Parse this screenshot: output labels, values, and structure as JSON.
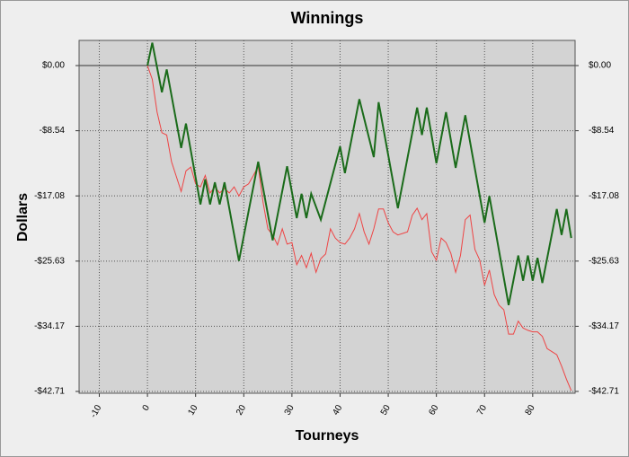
{
  "chart_data": {
    "type": "line",
    "title": "Winnings",
    "x_label": "Tourneys",
    "y_label": "Dollars",
    "xlim": [
      -14.2,
      88.8
    ],
    "xticks": [
      -10,
      0,
      10,
      20,
      30,
      40,
      50,
      60,
      70,
      80
    ],
    "ylim": [
      -42.95,
      3.3
    ],
    "yticks": [
      {
        "value": 0,
        "label": "$0.00"
      },
      {
        "value": -8.54,
        "label": "-$8.54"
      },
      {
        "value": -17.08,
        "label": "-$17.08"
      },
      {
        "value": -25.63,
        "label": "-$25.63"
      },
      {
        "value": -34.17,
        "label": "-$34.17"
      },
      {
        "value": -42.71,
        "label": "-$42.71"
      }
    ],
    "grid": true,
    "zero_line": true,
    "background": "#d3d3d3",
    "series": [
      {
        "color": "#ee4444",
        "width": 1,
        "x": [
          0,
          1,
          2,
          3,
          4,
          5,
          7,
          8,
          9,
          10,
          11,
          12,
          13,
          14,
          15,
          16,
          17,
          18,
          19,
          20,
          21,
          22,
          23,
          24,
          25,
          26,
          27,
          28,
          29,
          30,
          31,
          32,
          33,
          34,
          35,
          36,
          37,
          38,
          39,
          40,
          41,
          42,
          43,
          44,
          45,
          46,
          47,
          48,
          49,
          50,
          51,
          52,
          53,
          54,
          55,
          56,
          57,
          58,
          59,
          60,
          61,
          62,
          63,
          64,
          65,
          66,
          67,
          68,
          69,
          70,
          71,
          72,
          73,
          74,
          75,
          76,
          77,
          78,
          79,
          80,
          81,
          82,
          83,
          84,
          85,
          86,
          87,
          88
        ],
        "values": [
          0,
          -1.8,
          -6.1,
          -8.8,
          -9.1,
          -12.6,
          -16.5,
          -13.8,
          -13.3,
          -15.5,
          -15.9,
          -14.4,
          -16.7,
          -15.9,
          -16.7,
          -16.1,
          -16.7,
          -15.9,
          -17.1,
          -15.9,
          -15.5,
          -14.4,
          -13.2,
          -17.9,
          -21.4,
          -22.2,
          -23.5,
          -21.4,
          -23.4,
          -23.2,
          -26.1,
          -24.9,
          -26.5,
          -24.6,
          -27.1,
          -25.3,
          -24.7,
          -21.4,
          -22.6,
          -23.2,
          -23.4,
          -22.6,
          -21.4,
          -19.4,
          -21.8,
          -23.4,
          -21.4,
          -18.8,
          -18.8,
          -20.6,
          -21.8,
          -22.2,
          -22.0,
          -21.8,
          -19.6,
          -18.7,
          -20.2,
          -19.4,
          -24.4,
          -25.5,
          -22.6,
          -23.2,
          -24.6,
          -27.1,
          -24.9,
          -20.2,
          -19.6,
          -24.1,
          -25.5,
          -28.8,
          -26.8,
          -30.0,
          -31.4,
          -32.0,
          -35.2,
          -35.2,
          -33.5,
          -34.4,
          -34.7,
          -34.9,
          -34.9,
          -35.5,
          -37.1,
          -37.5,
          -37.9,
          -39.4,
          -41.1,
          -42.6
        ]
      },
      {
        "color": "#1a6b1a",
        "width": 2,
        "x": [
          0,
          1,
          3,
          4,
          7,
          8,
          11,
          12,
          13,
          14,
          15,
          16,
          19,
          23,
          26,
          29,
          31,
          32,
          33,
          34,
          36,
          40,
          41,
          44,
          47,
          48,
          52,
          56,
          57,
          58,
          60,
          62,
          64,
          66,
          70,
          71,
          75,
          77,
          78,
          79,
          80,
          81,
          82,
          85,
          86,
          87,
          88
        ],
        "values": [
          0,
          3.0,
          -3.5,
          -0.5,
          -10.8,
          -7.6,
          -18.2,
          -14.9,
          -18.2,
          -15.3,
          -18.2,
          -15.3,
          -25.6,
          -12.6,
          -22.9,
          -13.2,
          -20.0,
          -16.8,
          -20.0,
          -16.8,
          -20.2,
          -10.6,
          -14.1,
          -4.4,
          -12.0,
          -4.8,
          -18.7,
          -5.5,
          -9.1,
          -5.5,
          -12.8,
          -6.1,
          -13.4,
          -6.5,
          -20.6,
          -17.1,
          -31.4,
          -24.9,
          -28.2,
          -24.9,
          -28.2,
          -25.2,
          -28.5,
          -18.8,
          -22.2,
          -18.8,
          -22.6
        ]
      }
    ]
  }
}
